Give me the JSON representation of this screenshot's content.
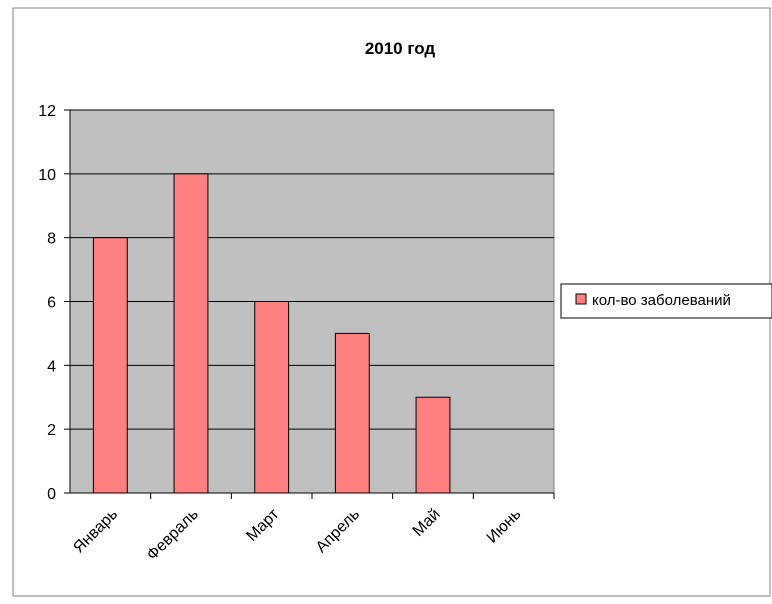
{
  "chart_data": {
    "type": "bar",
    "title": "2010 год",
    "categories": [
      "Январь",
      "Февраль",
      "Март",
      "Апрель",
      "Май",
      "Июнь"
    ],
    "series": [
      {
        "name": "кол-во заболеваний",
        "values": [
          8,
          10,
          6,
          5,
          3,
          0
        ],
        "color": "#ff8080"
      }
    ],
    "xlabel": "",
    "ylabel": "",
    "ylim": [
      0,
      12
    ],
    "yticks": [
      0,
      2,
      4,
      6,
      8,
      10,
      12
    ],
    "grid": true,
    "plot_background": "#c0c0c0",
    "legend_position": "right"
  }
}
